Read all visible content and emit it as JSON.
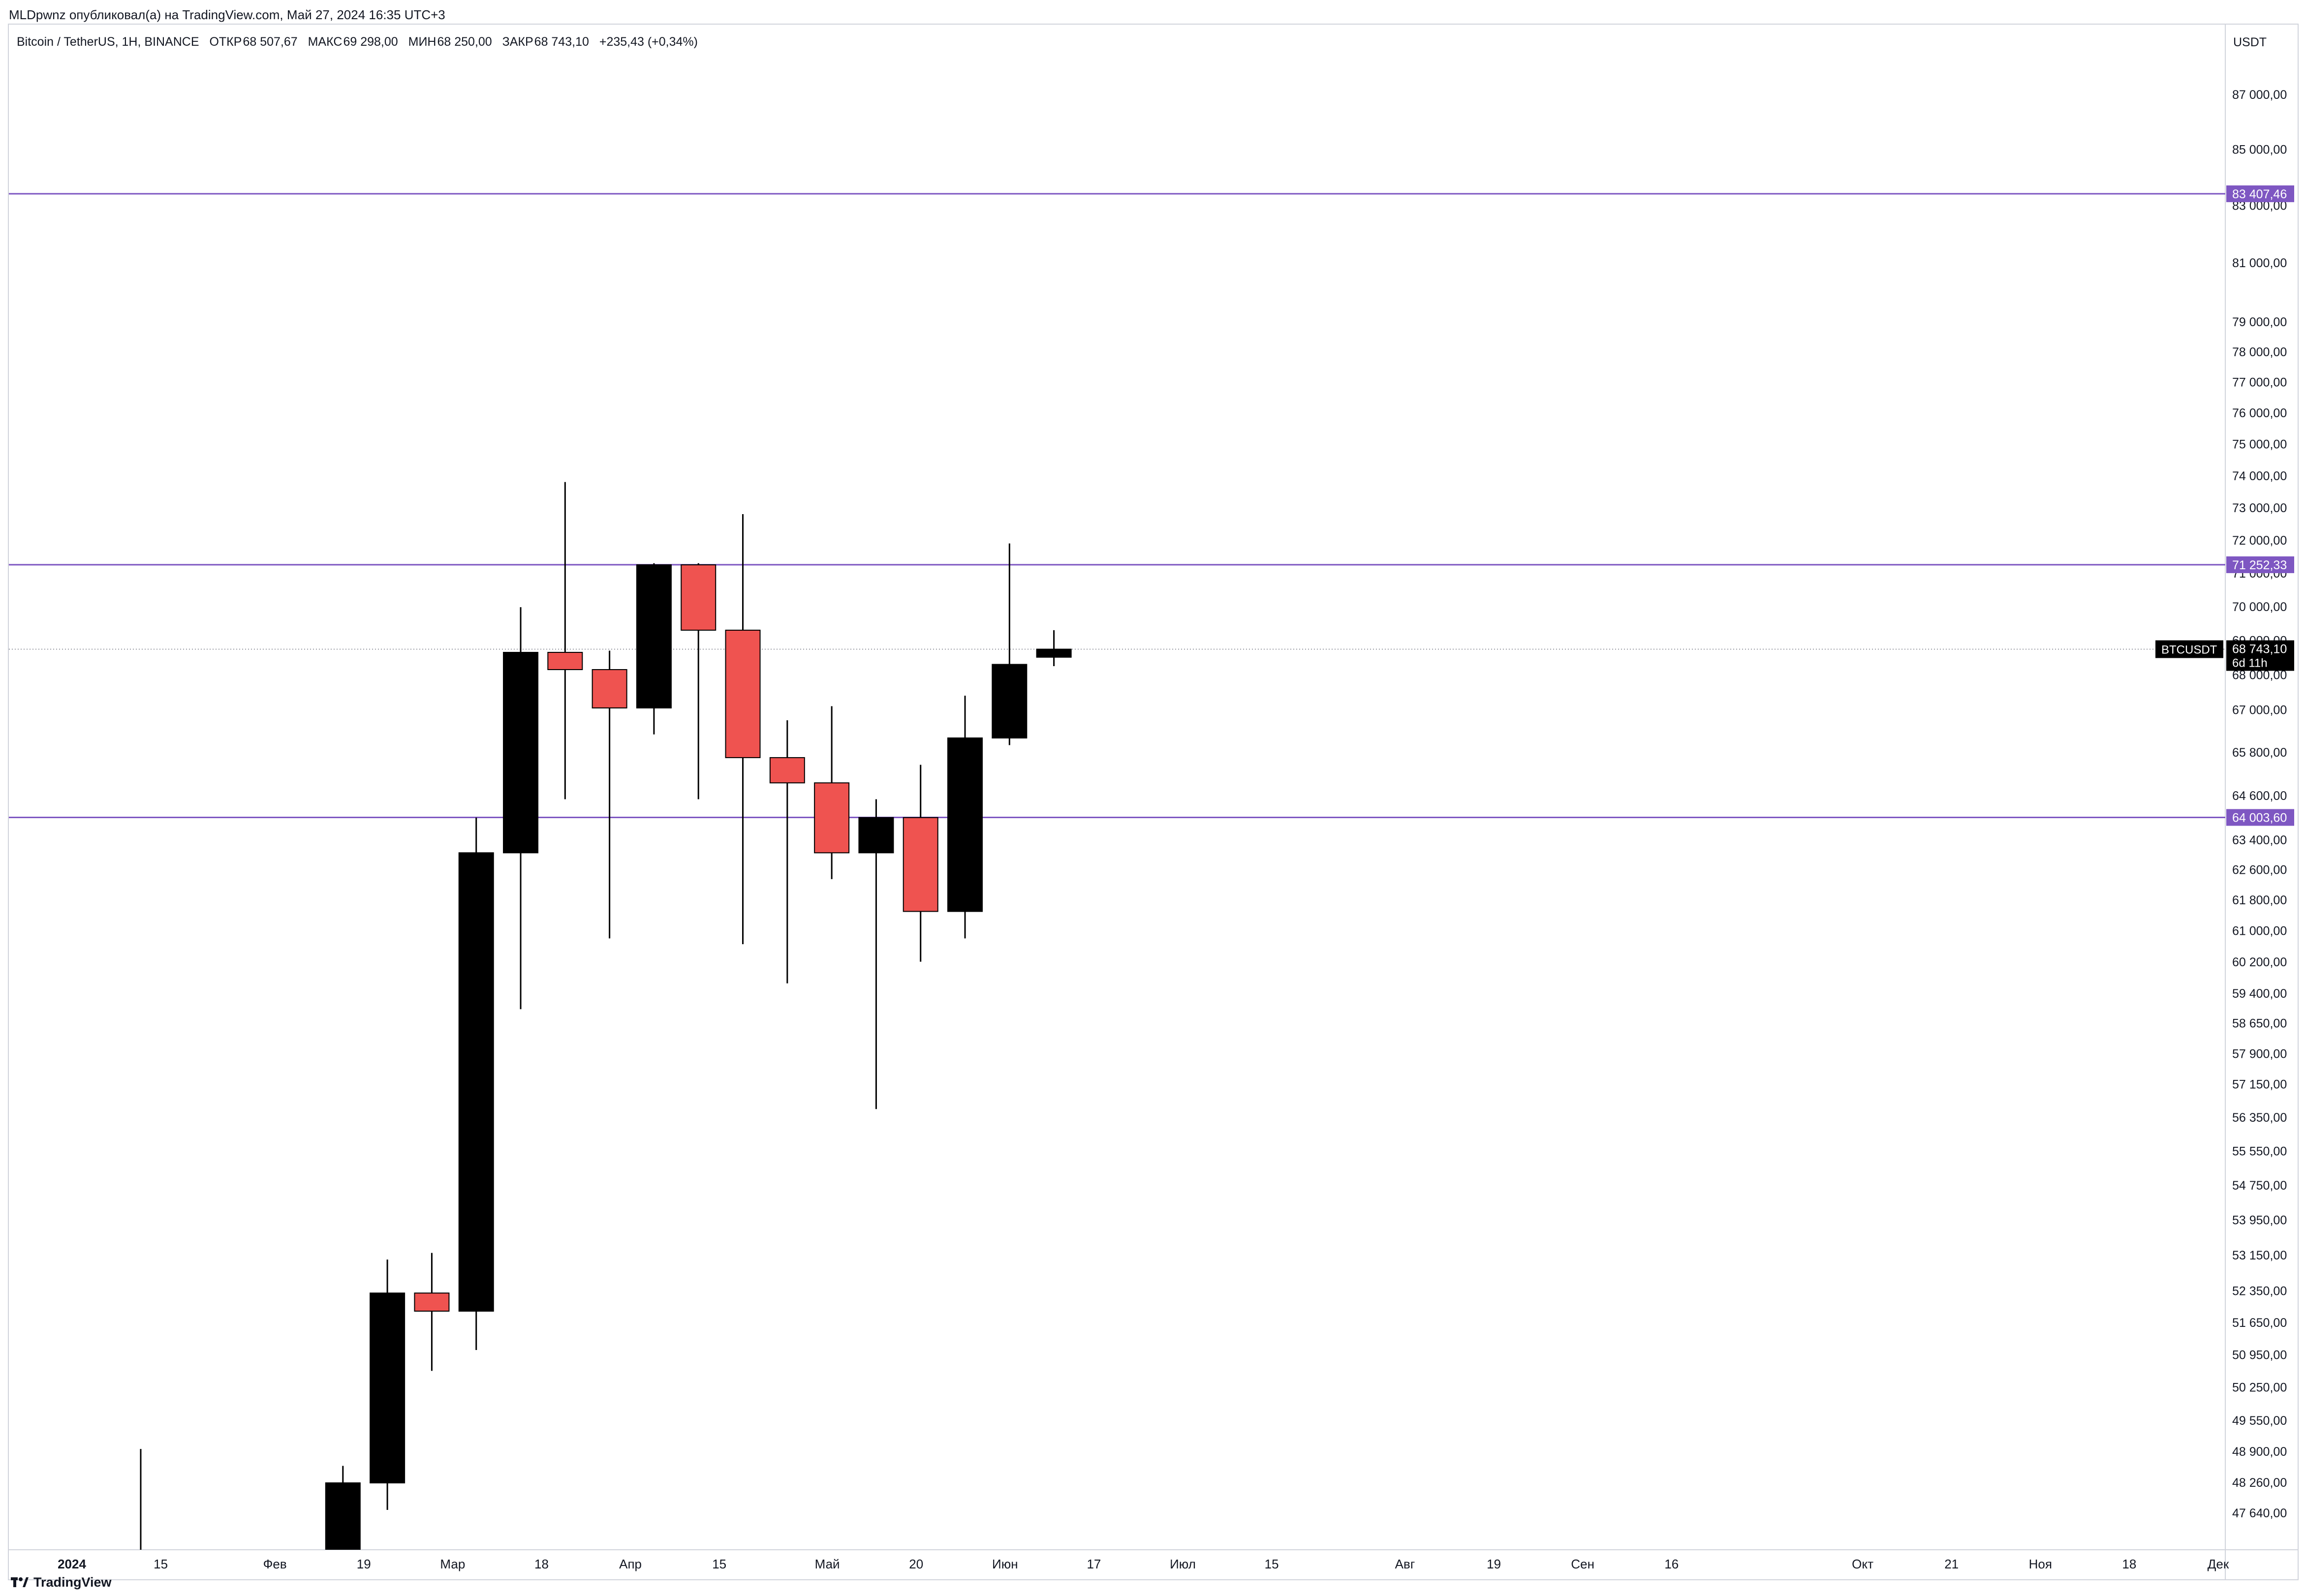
{
  "header": {
    "publisher_text": "MLDpwnz опубликовал(а) на TradingView.com, Май 27, 2024 16:35 UTC+3"
  },
  "legend": {
    "symbol": "Bitcoin / TetherUS, 1H, BINANCE",
    "open_label": "ОТКР",
    "open_value": "68 507,67",
    "high_label": "МАКС",
    "high_value": "69 298,00",
    "low_label": "МИН",
    "low_value": "68 250,00",
    "close_label": "ЗАКР",
    "close_value": "68 743,10",
    "change": "+235,43 (+0,34%)"
  },
  "price_axis": {
    "currency": "USDT"
  },
  "footer": {
    "brand": "TradingView"
  },
  "colors": {
    "up": "#000000",
    "down": "#ef5350",
    "level": "#7e57c2",
    "axis_text": "#131722",
    "grid_border": "#d1d4dc"
  },
  "chart_data": {
    "type": "candlestick",
    "symbol": "BTCUSDT",
    "scale": "log",
    "ylim": [
      47000,
      89000
    ],
    "x_ticks": [
      {
        "label": "2024",
        "bold": true,
        "week": 0
      },
      {
        "label": "15",
        "week": 2
      },
      {
        "label": "Фев",
        "week": 4.57
      },
      {
        "label": "19",
        "week": 6.57
      },
      {
        "label": "Мар",
        "week": 8.57
      },
      {
        "label": "18",
        "week": 10.57
      },
      {
        "label": "Апр",
        "week": 12.57
      },
      {
        "label": "15",
        "week": 14.57
      },
      {
        "label": "Май",
        "week": 17.0
      },
      {
        "label": "20",
        "week": 19.0
      },
      {
        "label": "Июн",
        "week": 21.0
      },
      {
        "label": "17",
        "week": 23.0
      },
      {
        "label": "Июл",
        "week": 25.0
      },
      {
        "label": "15",
        "week": 27.0
      },
      {
        "label": "Авг",
        "week": 30.0
      },
      {
        "label": "19",
        "week": 32.0
      },
      {
        "label": "Сен",
        "week": 34.0
      },
      {
        "label": "16",
        "week": 36.0
      },
      {
        "label": "Окт",
        "week": 40.3
      },
      {
        "label": "21",
        "week": 42.3
      },
      {
        "label": "Ноя",
        "week": 44.3
      },
      {
        "label": "18",
        "week": 46.3
      },
      {
        "label": "Дек",
        "week": 48.3
      }
    ],
    "y_ticks": [
      "87 000,00",
      "85 000,00",
      "83 000,00",
      "81 000,00",
      "79 000,00",
      "78 000,00",
      "77 000,00",
      "76 000,00",
      "75 000,00",
      "74 000,00",
      "73 000,00",
      "72 000,00",
      "71 000,00",
      "70 000,00",
      "69 000,00",
      "68 000,00",
      "67 000,00",
      "65 800,00",
      "64 600,00",
      "63 400,00",
      "62 600,00",
      "61 800,00",
      "61 000,00",
      "60 200,00",
      "59 400,00",
      "58 650,00",
      "57 900,00",
      "57 150,00",
      "56 350,00",
      "55 550,00",
      "54 750,00",
      "53 950,00",
      "53 150,00",
      "52 350,00",
      "51 650,00",
      "50 950,00",
      "50 250,00",
      "49 550,00",
      "48 900,00",
      "48 260,00",
      "47 640,00"
    ],
    "candles": [
      {
        "week": 1.55,
        "open": 46000,
        "high": 48950,
        "low": 46000,
        "close": 46000,
        "wick_only": true
      },
      {
        "week": 6.1,
        "open": 46900,
        "high": 48600,
        "low": 46900,
        "close": 48250
      },
      {
        "week": 7.1,
        "open": 48250,
        "high": 53050,
        "low": 47700,
        "close": 52300
      },
      {
        "week": 8.1,
        "open": 52300,
        "high": 53200,
        "low": 50600,
        "close": 51900
      },
      {
        "week": 9.1,
        "open": 51900,
        "high": 64000,
        "low": 51050,
        "close": 63050
      },
      {
        "week": 10.1,
        "open": 63050,
        "high": 69980,
        "low": 59000,
        "close": 68650
      },
      {
        "week": 11.1,
        "open": 68650,
        "high": 73800,
        "low": 64500,
        "close": 68150
      },
      {
        "week": 12.1,
        "open": 68150,
        "high": 68700,
        "low": 60800,
        "close": 67050
      },
      {
        "week": 13.1,
        "open": 67050,
        "high": 71300,
        "low": 66300,
        "close": 71250
      },
      {
        "week": 14.1,
        "open": 71250,
        "high": 71300,
        "low": 64500,
        "close": 69300
      },
      {
        "week": 15.1,
        "open": 69300,
        "high": 72800,
        "low": 60650,
        "close": 65650
      },
      {
        "week": 16.1,
        "open": 65650,
        "high": 66700,
        "low": 59650,
        "close": 64950
      },
      {
        "week": 17.1,
        "open": 64950,
        "high": 67100,
        "low": 62350,
        "close": 63050
      },
      {
        "week": 18.1,
        "open": 63050,
        "high": 64500,
        "low": 56550,
        "close": 64000
      },
      {
        "week": 19.1,
        "open": 64000,
        "high": 65450,
        "low": 60200,
        "close": 61500
      },
      {
        "week": 20.1,
        "open": 61500,
        "high": 67400,
        "low": 60800,
        "close": 66200
      },
      {
        "week": 21.1,
        "open": 66200,
        "high": 71900,
        "low": 66000,
        "close": 68300
      },
      {
        "week": 22.1,
        "open": 68510,
        "high": 69300,
        "low": 68250,
        "close": 68743
      }
    ],
    "levels": [
      {
        "value": 83407.46,
        "label": "83 407,46"
      },
      {
        "value": 71252.33,
        "label": "71 252,33"
      },
      {
        "value": 64003.6,
        "label": "64 003,60"
      }
    ],
    "last_price": {
      "value": 68743.1,
      "label": "68 743,10",
      "symbol_label": "BTCUSDT",
      "countdown": "6d 11h"
    }
  }
}
